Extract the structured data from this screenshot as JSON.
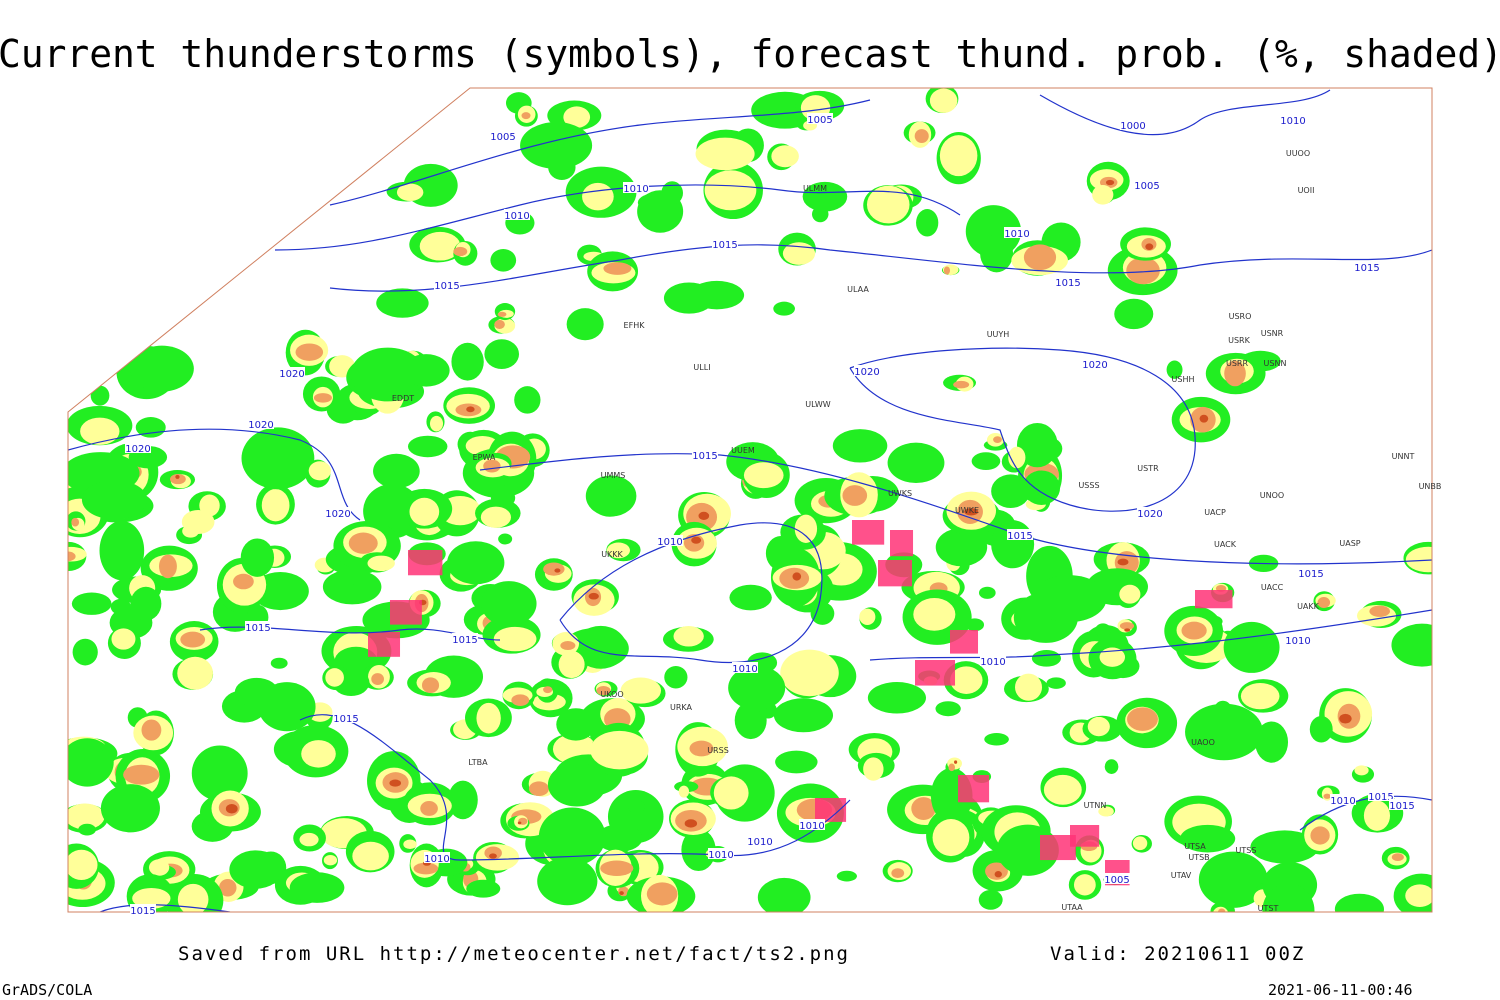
{
  "header": {
    "title": "Current thunderstorms (symbols), forecast thund. prob. (%, shaded)"
  },
  "footer": {
    "source": "Saved from URL http://meteocenter.net/fact/ts2.png",
    "valid": "Valid: 20210611 00Z",
    "credit": "GrADS/COLA",
    "timestamp": "2021-06-11-00:46"
  },
  "isobar_labels": [
    "1005",
    "1005",
    "1000",
    "1010",
    "1010",
    "1010",
    "1005",
    "1010",
    "1015",
    "1015",
    "1015",
    "1015",
    "1020",
    "1020",
    "1020",
    "1020",
    "1020",
    "1015",
    "1020",
    "1020",
    "1010",
    "1015",
    "1015",
    "1015",
    "1015",
    "1010",
    "1010",
    "1010",
    "1015",
    "1010",
    "1010",
    "1010",
    "1010",
    "1005",
    "1015",
    "1010",
    "1015",
    "1015"
  ],
  "station_labels": [
    "ULAA",
    "UUYH",
    "USRO",
    "USRK",
    "USNR",
    "USRR",
    "USNN",
    "USHH",
    "ULWW",
    "UUEM",
    "UWKS",
    "UWKE",
    "UUOO",
    "UOII",
    "USSS",
    "USTR",
    "UNOO",
    "UNNT",
    "UNBB",
    "UACP",
    "UACK",
    "UASP",
    "UACC",
    "UAKK",
    "UAOO",
    "UTNN",
    "UTSA",
    "UTSS",
    "UTSB",
    "UTAV",
    "UTST",
    "UTAA",
    "EFHK",
    "ULLI",
    "EDDT",
    "EPWA",
    "UMMS",
    "UKKK",
    "UKOO",
    "URKA",
    "URSS",
    "LTBA",
    "ULMM"
  ]
}
